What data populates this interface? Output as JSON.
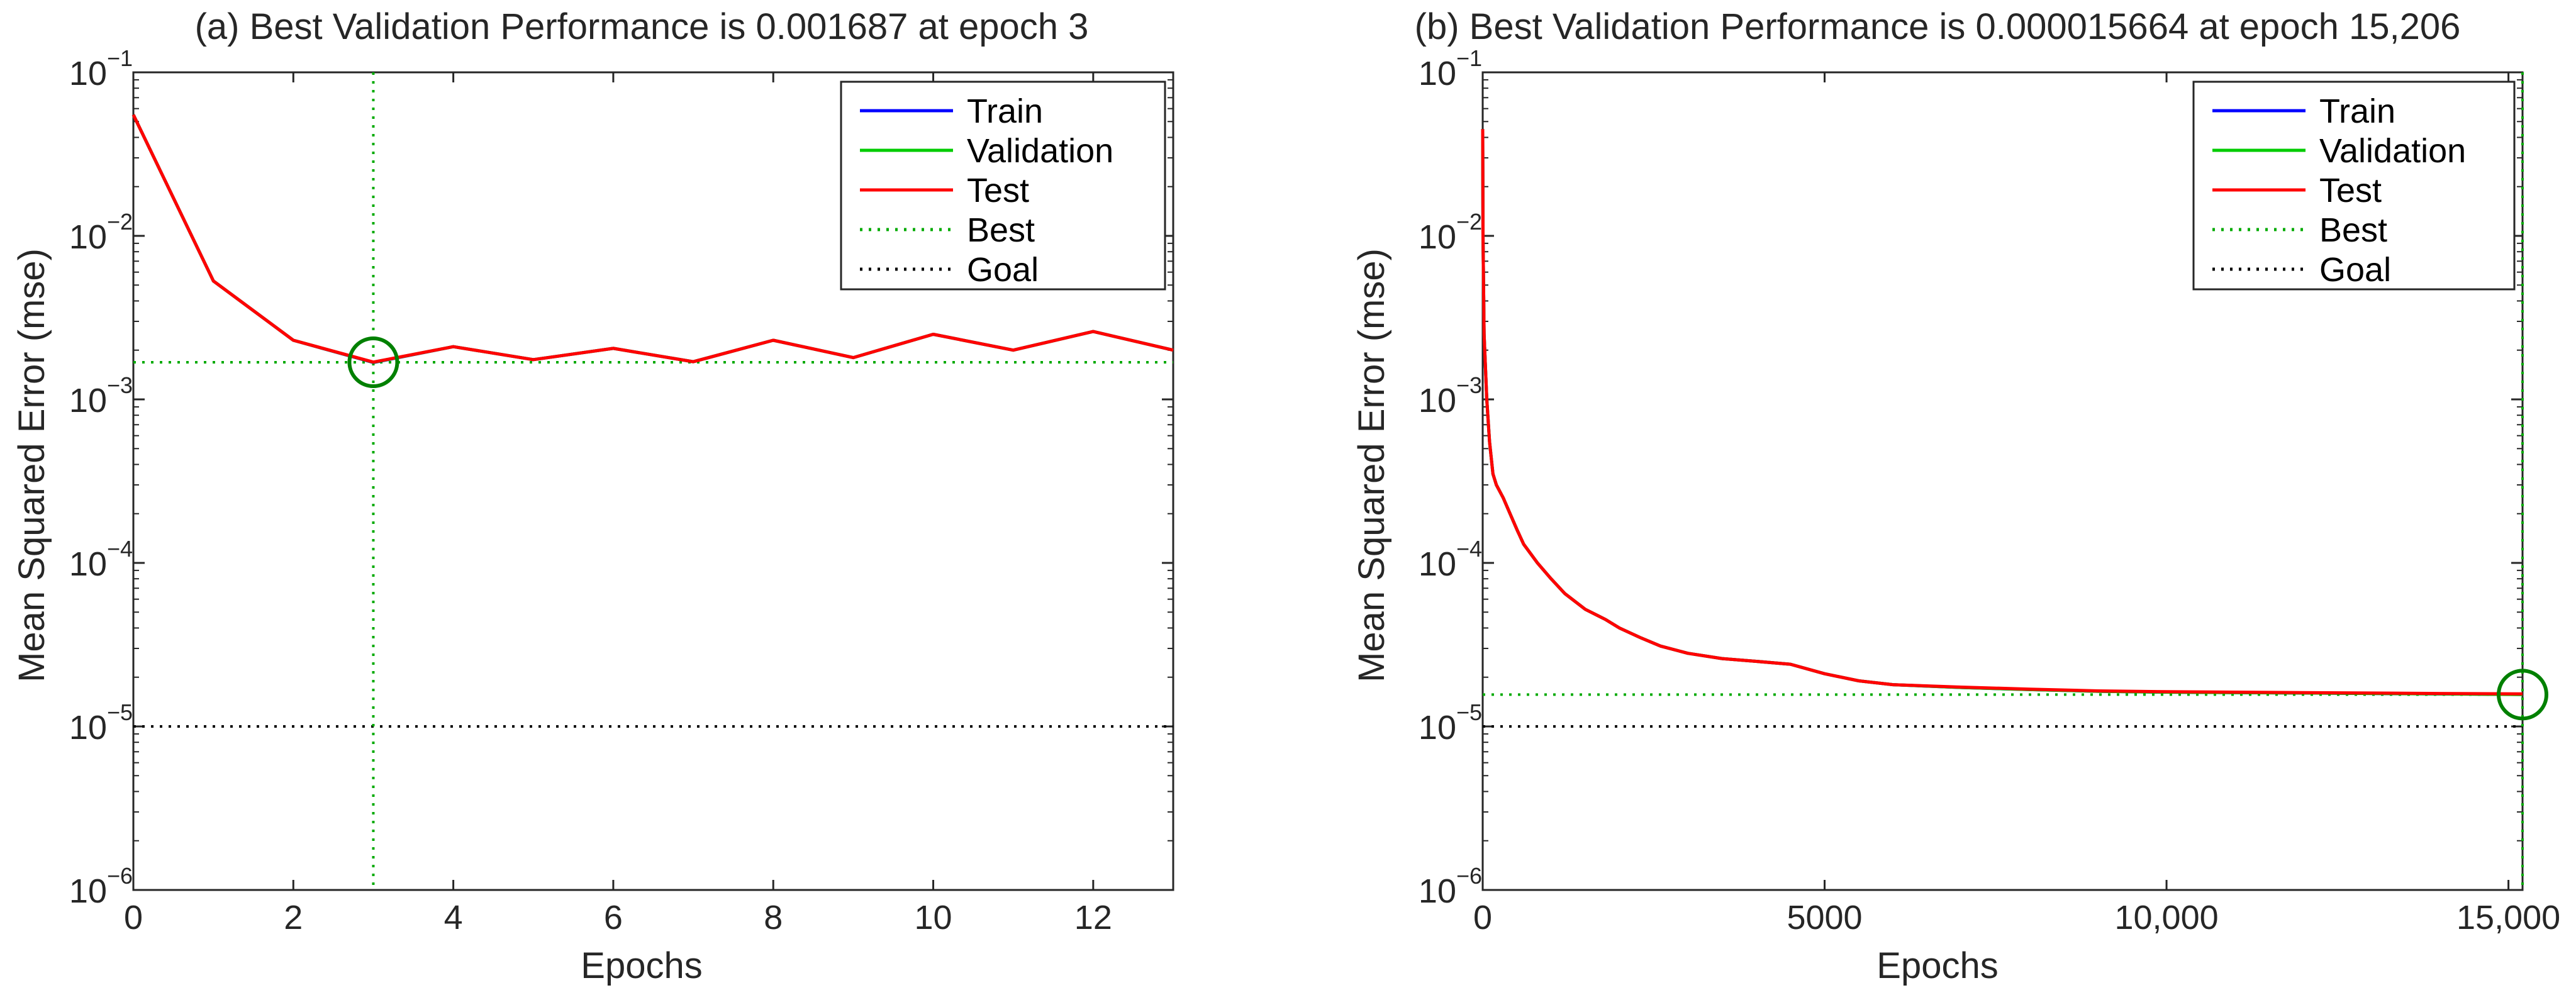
{
  "chart_data": [
    {
      "id": "a",
      "type": "line",
      "title": "(a) Best Validation Performance is 0.001687 at epoch 3",
      "xlabel": "Epochs",
      "ylabel": "Mean Squared Error  (mse)",
      "yscale": "log",
      "xlim": [
        0,
        13
      ],
      "ylim_exp": [
        -6,
        -1
      ],
      "xticks": [
        0,
        2,
        4,
        6,
        8,
        10,
        12
      ],
      "xtick_labels": [
        "0",
        "2",
        "4",
        "6",
        "8",
        "10",
        "12"
      ],
      "ytick_exponents": [
        -6,
        -5,
        -4,
        -3,
        -2,
        -1
      ],
      "ytick_base": "10",
      "colors": {
        "train": "#0000ff",
        "validation": "#00cc00",
        "test": "#ff0000",
        "best": "#00aa00",
        "goal": "#000000",
        "circle": "#008000"
      },
      "series": [
        {
          "name": "Train",
          "key": "train",
          "x": [
            0,
            1,
            2,
            3,
            4,
            5,
            6,
            7,
            8,
            9,
            10,
            11,
            12,
            13
          ],
          "y": [
            0.055,
            0.0053,
            0.0023,
            0.00168,
            0.0021,
            0.00175,
            0.00205,
            0.0017,
            0.0023,
            0.0018,
            0.0025,
            0.002,
            0.0026,
            0.002
          ]
        },
        {
          "name": "Validation",
          "key": "validation",
          "x": [
            0,
            1,
            2,
            3,
            4,
            5,
            6,
            7,
            8,
            9,
            10,
            11,
            12,
            13
          ],
          "y": [
            0.055,
            0.0053,
            0.0023,
            0.001687,
            0.0021,
            0.00175,
            0.00205,
            0.0017,
            0.0023,
            0.0018,
            0.0025,
            0.002,
            0.0026,
            0.002
          ]
        },
        {
          "name": "Test",
          "key": "test",
          "x": [
            0,
            1,
            2,
            3,
            4,
            5,
            6,
            7,
            8,
            9,
            10,
            11,
            12,
            13
          ],
          "y": [
            0.055,
            0.0053,
            0.0023,
            0.00169,
            0.0021,
            0.00175,
            0.00205,
            0.0017,
            0.0023,
            0.0018,
            0.0025,
            0.002,
            0.0026,
            0.002
          ]
        }
      ],
      "best": {
        "epoch": 3,
        "value": 0.001687
      },
      "goal": 1e-05,
      "legend": [
        "Train",
        "Validation",
        "Test",
        "Best",
        "Goal"
      ],
      "legend_position": "top-right"
    },
    {
      "id": "b",
      "type": "line",
      "title": "(b) Best Validation Performance is 0.000015664 at epoch 15,206",
      "xlabel": "Epochs",
      "ylabel": "Mean Squared Error  (mse)",
      "yscale": "log",
      "xlim": [
        0,
        15206
      ],
      "ylim_exp": [
        -6,
        -1
      ],
      "xticks": [
        0,
        5000,
        10000,
        15000
      ],
      "xtick_labels": [
        "0",
        "5000",
        "10,000",
        "15,000"
      ],
      "ytick_exponents": [
        -6,
        -5,
        -4,
        -3,
        -2,
        -1
      ],
      "ytick_base": "10",
      "colors": {
        "train": "#0000ff",
        "validation": "#00cc00",
        "test": "#ff0000",
        "best": "#00aa00",
        "goal": "#000000",
        "circle": "#008000"
      },
      "series": [
        {
          "name": "Train",
          "key": "train",
          "x": [
            0,
            5,
            20,
            60,
            100,
            150,
            200,
            300,
            400,
            500,
            600,
            800,
            1000,
            1200,
            1500,
            1800,
            2000,
            2300,
            2600,
            3000,
            3500,
            4000,
            4500,
            5000,
            5500,
            6000,
            7000,
            8000,
            9000,
            10000,
            11000,
            12000,
            13000,
            14000,
            15206
          ],
          "y": [
            0.045,
            0.01,
            0.0025,
            0.001,
            0.00055,
            0.00035,
            0.0003,
            0.00025,
            0.0002,
            0.00016,
            0.00013,
            0.0001,
            8e-05,
            6.5e-05,
            5.2e-05,
            4.5e-05,
            4e-05,
            3.5e-05,
            3.1e-05,
            2.8e-05,
            2.6e-05,
            2.5e-05,
            2.4e-05,
            2.1e-05,
            1.9e-05,
            1.8e-05,
            1.73e-05,
            1.68e-05,
            1.64e-05,
            1.62e-05,
            1.61e-05,
            1.6e-05,
            1.59e-05,
            1.58e-05,
            1.57e-05
          ]
        },
        {
          "name": "Validation",
          "key": "validation",
          "x": [
            0,
            5,
            20,
            60,
            100,
            150,
            200,
            300,
            400,
            500,
            600,
            800,
            1000,
            1200,
            1500,
            1800,
            2000,
            2300,
            2600,
            3000,
            3500,
            4000,
            4500,
            5000,
            5500,
            6000,
            7000,
            8000,
            9000,
            10000,
            11000,
            12000,
            13000,
            14000,
            15206
          ],
          "y": [
            0.045,
            0.01,
            0.0025,
            0.001,
            0.00055,
            0.00035,
            0.0003,
            0.00025,
            0.0002,
            0.00016,
            0.00013,
            0.0001,
            8e-05,
            6.5e-05,
            5.2e-05,
            4.5e-05,
            4e-05,
            3.5e-05,
            3.1e-05,
            2.8e-05,
            2.6e-05,
            2.5e-05,
            2.4e-05,
            2.1e-05,
            1.9e-05,
            1.8e-05,
            1.73e-05,
            1.68e-05,
            1.64e-05,
            1.62e-05,
            1.61e-05,
            1.6e-05,
            1.59e-05,
            1.58e-05,
            1.5664e-05
          ]
        },
        {
          "name": "Test",
          "key": "test",
          "x": [
            0,
            5,
            20,
            60,
            100,
            150,
            200,
            300,
            400,
            500,
            600,
            800,
            1000,
            1200,
            1500,
            1800,
            2000,
            2300,
            2600,
            3000,
            3500,
            4000,
            4500,
            5000,
            5500,
            6000,
            7000,
            8000,
            9000,
            10000,
            11000,
            12000,
            13000,
            14000,
            15206
          ],
          "y": [
            0.045,
            0.01,
            0.0025,
            0.001,
            0.00055,
            0.00035,
            0.0003,
            0.00025,
            0.0002,
            0.00016,
            0.00013,
            0.0001,
            8e-05,
            6.5e-05,
            5.2e-05,
            4.5e-05,
            4e-05,
            3.5e-05,
            3.1e-05,
            2.8e-05,
            2.6e-05,
            2.5e-05,
            2.4e-05,
            2.1e-05,
            1.9e-05,
            1.8e-05,
            1.74e-05,
            1.69e-05,
            1.65e-05,
            1.63e-05,
            1.62e-05,
            1.61e-05,
            1.6e-05,
            1.59e-05,
            1.58e-05
          ]
        }
      ],
      "best": {
        "epoch": 15206,
        "value": 1.5664e-05
      },
      "goal": 1e-05,
      "legend": [
        "Train",
        "Validation",
        "Test",
        "Best",
        "Goal"
      ],
      "legend_position": "top-right"
    }
  ]
}
